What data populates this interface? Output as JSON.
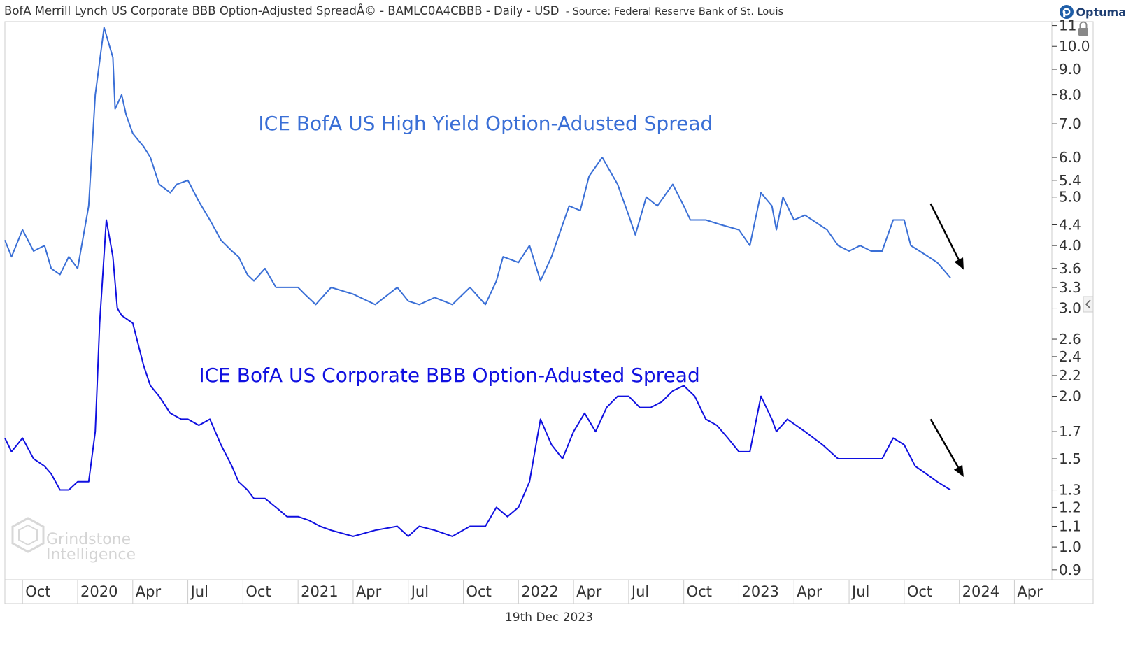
{
  "header": {
    "title": "BofA Merrill Lynch US Corporate BBB Option-Adjusted SpreadÂ© - BAMLC0A4CBBB - Daily - USD",
    "source": "- Source: Federal Reserve Bank of St. Louis",
    "brand": "Optuma"
  },
  "footer": {
    "date": "19th Dec 2023"
  },
  "watermark": {
    "line1": "Grindstone",
    "line2": "Intelligence"
  },
  "colors": {
    "high_yield": "#3a6fd6",
    "bbb": "#1010e0",
    "arrow": "#000000",
    "grid": "#cccccc"
  },
  "chart_data": {
    "type": "line",
    "title": "BofA Merrill Lynch US Corporate BBB Option-Adjusted Spread - BAMLC0A4CBBB - Daily - USD",
    "y_scale": "log",
    "ylim": [
      0.86,
      11.2
    ],
    "y_ticks": [
      "11",
      "10.0",
      "9.0",
      "8.0",
      "7.0",
      "6.0",
      "5.4",
      "5.0",
      "4.4",
      "4.0",
      "3.6",
      "3.3",
      "3.0",
      "2.6",
      "2.4",
      "2.2",
      "2.0",
      "1.7",
      "1.5",
      "1.3",
      "1.2",
      "1.1",
      "1.0",
      "0.9"
    ],
    "y_tick_values": [
      11,
      10,
      9,
      8,
      7,
      6,
      5.4,
      5,
      4.4,
      4,
      3.6,
      3.3,
      3,
      2.6,
      2.4,
      2.2,
      2,
      1.7,
      1.5,
      1.3,
      1.2,
      1.1,
      1.0,
      0.9
    ],
    "x_range": [
      2019.67,
      2024.42
    ],
    "x_ticks": [
      {
        "label": "Oct",
        "t": 2019.75
      },
      {
        "label": "2020",
        "t": 2020.0
      },
      {
        "label": "Apr",
        "t": 2020.25
      },
      {
        "label": "Jul",
        "t": 2020.5
      },
      {
        "label": "Oct",
        "t": 2020.75
      },
      {
        "label": "2021",
        "t": 2021.0
      },
      {
        "label": "Apr",
        "t": 2021.25
      },
      {
        "label": "Jul",
        "t": 2021.5
      },
      {
        "label": "Oct",
        "t": 2021.75
      },
      {
        "label": "2022",
        "t": 2022.0
      },
      {
        "label": "Apr",
        "t": 2022.25
      },
      {
        "label": "Jul",
        "t": 2022.5
      },
      {
        "label": "Oct",
        "t": 2022.75
      },
      {
        "label": "2023",
        "t": 2023.0
      },
      {
        "label": "Apr",
        "t": 2023.25
      },
      {
        "label": "Jul",
        "t": 2023.5
      },
      {
        "label": "Oct",
        "t": 2023.75
      },
      {
        "label": "2024",
        "t": 2024.0
      },
      {
        "label": "Apr",
        "t": 2024.25
      }
    ],
    "series": [
      {
        "name": "ICE BofA US High Yield Option-Adusted Spread",
        "key": "high_yield",
        "x": [
          2019.67,
          2019.7,
          2019.75,
          2019.8,
          2019.85,
          2019.88,
          2019.92,
          2019.96,
          2020.0,
          2020.05,
          2020.08,
          2020.12,
          2020.16,
          2020.17,
          2020.2,
          2020.22,
          2020.25,
          2020.3,
          2020.33,
          2020.37,
          2020.42,
          2020.45,
          2020.5,
          2020.55,
          2020.6,
          2020.65,
          2020.7,
          2020.73,
          2020.77,
          2020.8,
          2020.85,
          2020.9,
          2020.95,
          2021.0,
          2021.03,
          2021.08,
          2021.15,
          2021.25,
          2021.35,
          2021.45,
          2021.5,
          2021.55,
          2021.62,
          2021.7,
          2021.78,
          2021.85,
          2021.9,
          2021.93,
          2022.0,
          2022.05,
          2022.1,
          2022.15,
          2022.2,
          2022.23,
          2022.28,
          2022.32,
          2022.38,
          2022.45,
          2022.5,
          2022.53,
          2022.58,
          2022.63,
          2022.7,
          2022.75,
          2022.78,
          2022.85,
          2022.92,
          2023.0,
          2023.05,
          2023.1,
          2023.15,
          2023.17,
          2023.2,
          2023.25,
          2023.3,
          2023.4,
          2023.45,
          2023.5,
          2023.55,
          2023.6,
          2023.65,
          2023.7,
          2023.75,
          2023.78,
          2023.82,
          2023.86,
          2023.9,
          2023.96
        ],
        "values": [
          4.1,
          3.8,
          4.3,
          3.9,
          4.0,
          3.6,
          3.5,
          3.8,
          3.6,
          4.8,
          8.0,
          10.9,
          9.5,
          7.5,
          8.0,
          7.3,
          6.7,
          6.3,
          6.0,
          5.3,
          5.1,
          5.3,
          5.4,
          4.9,
          4.5,
          4.1,
          3.9,
          3.8,
          3.5,
          3.4,
          3.6,
          3.3,
          3.3,
          3.3,
          3.2,
          3.05,
          3.3,
          3.2,
          3.05,
          3.3,
          3.1,
          3.05,
          3.15,
          3.05,
          3.3,
          3.05,
          3.4,
          3.8,
          3.7,
          4.0,
          3.4,
          3.8,
          4.4,
          4.8,
          4.7,
          5.5,
          6.0,
          5.3,
          4.6,
          4.2,
          5.0,
          4.8,
          5.3,
          4.8,
          4.5,
          4.5,
          4.4,
          4.3,
          4.0,
          5.1,
          4.8,
          4.3,
          5.0,
          4.5,
          4.6,
          4.3,
          4.0,
          3.9,
          4.0,
          3.9,
          3.9,
          4.5,
          4.5,
          4.0,
          3.9,
          3.8,
          3.7,
          3.45
        ]
      },
      {
        "name": "ICE BofA US Corporate BBB Option-Adusted Spread",
        "key": "bbb",
        "x": [
          2019.67,
          2019.7,
          2019.75,
          2019.8,
          2019.85,
          2019.88,
          2019.92,
          2019.96,
          2020.0,
          2020.05,
          2020.08,
          2020.1,
          2020.13,
          2020.16,
          2020.18,
          2020.2,
          2020.25,
          2020.3,
          2020.33,
          2020.37,
          2020.42,
          2020.47,
          2020.5,
          2020.55,
          2020.6,
          2020.65,
          2020.7,
          2020.73,
          2020.77,
          2020.8,
          2020.85,
          2020.9,
          2020.95,
          2021.0,
          2021.05,
          2021.1,
          2021.15,
          2021.25,
          2021.35,
          2021.45,
          2021.5,
          2021.55,
          2021.62,
          2021.7,
          2021.78,
          2021.85,
          2021.9,
          2021.95,
          2022.0,
          2022.05,
          2022.1,
          2022.15,
          2022.2,
          2022.25,
          2022.3,
          2022.35,
          2022.4,
          2022.45,
          2022.5,
          2022.55,
          2022.6,
          2022.65,
          2022.7,
          2022.75,
          2022.8,
          2022.85,
          2022.9,
          2022.95,
          2023.0,
          2023.05,
          2023.1,
          2023.15,
          2023.17,
          2023.22,
          2023.3,
          2023.38,
          2023.45,
          2023.5,
          2023.55,
          2023.6,
          2023.65,
          2023.7,
          2023.75,
          2023.8,
          2023.85,
          2023.9,
          2023.96
        ],
        "values": [
          1.65,
          1.55,
          1.65,
          1.5,
          1.45,
          1.4,
          1.3,
          1.3,
          1.35,
          1.35,
          1.7,
          2.8,
          4.5,
          3.8,
          3.0,
          2.9,
          2.8,
          2.3,
          2.1,
          2.0,
          1.85,
          1.8,
          1.8,
          1.75,
          1.8,
          1.6,
          1.45,
          1.35,
          1.3,
          1.25,
          1.25,
          1.2,
          1.15,
          1.15,
          1.13,
          1.1,
          1.08,
          1.05,
          1.08,
          1.1,
          1.05,
          1.1,
          1.08,
          1.05,
          1.1,
          1.1,
          1.2,
          1.15,
          1.2,
          1.35,
          1.8,
          1.6,
          1.5,
          1.7,
          1.85,
          1.7,
          1.9,
          2.0,
          2.0,
          1.9,
          1.9,
          1.95,
          2.05,
          2.1,
          2.0,
          1.8,
          1.75,
          1.65,
          1.55,
          1.55,
          2.0,
          1.8,
          1.7,
          1.8,
          1.7,
          1.6,
          1.5,
          1.5,
          1.5,
          1.5,
          1.5,
          1.65,
          1.6,
          1.45,
          1.4,
          1.35,
          1.3
        ]
      }
    ],
    "annotations": [
      {
        "text": "ICE BofA US High Yield Option-Adusted Spread",
        "series": "high_yield",
        "t": 2020.82,
        "y": 7.0
      },
      {
        "text": "ICE BofA US Corporate BBB Option-Adusted Spread",
        "series": "bbb",
        "t": 2020.55,
        "y": 2.2
      }
    ],
    "arrows": [
      {
        "t1": 2023.87,
        "y1": 4.85,
        "t2": 2024.02,
        "y2": 3.58
      },
      {
        "t1": 2023.87,
        "y1": 1.8,
        "t2": 2024.02,
        "y2": 1.38
      }
    ]
  }
}
